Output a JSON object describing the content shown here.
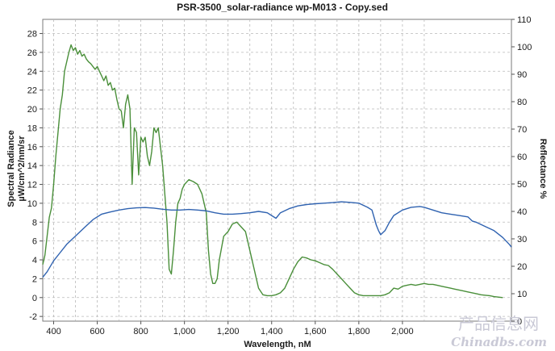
{
  "chart_data": {
    "type": "line",
    "title": "PSR-3500_solar-radiance wp-M013 - Copy.sed",
    "xlabel": "Wavelength, nM",
    "ylabel_left_lines": [
      "Spectral Radiance",
      "µW/cm^2/nm/sr"
    ],
    "ylabel_right": "Reflectance %",
    "xlim": [
      350,
      2500
    ],
    "ylim_left": [
      -2.5,
      29.5
    ],
    "ylim_right": [
      0,
      110
    ],
    "x_ticks": [
      400,
      600,
      800,
      1000,
      1200,
      1400,
      1600,
      1800,
      2000
    ],
    "x_tick_labels": [
      "400",
      "600",
      "800",
      "1,000",
      "1,200",
      "1,400",
      "1,600",
      "1,800",
      "2,000"
    ],
    "y_left_ticks": [
      -2,
      0,
      2,
      4,
      6,
      8,
      10,
      12,
      14,
      16,
      18,
      20,
      22,
      24,
      26,
      28
    ],
    "y_right_ticks": [
      0,
      10,
      20,
      30,
      40,
      50,
      60,
      70,
      80,
      90,
      100,
      110
    ],
    "grid": true,
    "series": [
      {
        "axis": "left",
        "color": "#4a8f3a",
        "points": [
          [
            350,
            3.5
          ],
          [
            360,
            4.5
          ],
          [
            370,
            6.5
          ],
          [
            380,
            8.5
          ],
          [
            390,
            9.5
          ],
          [
            400,
            12
          ],
          [
            410,
            15
          ],
          [
            420,
            17.5
          ],
          [
            430,
            20
          ],
          [
            440,
            21.5
          ],
          [
            450,
            24
          ],
          [
            460,
            25
          ],
          [
            470,
            26
          ],
          [
            480,
            26.8
          ],
          [
            490,
            26.2
          ],
          [
            500,
            26.5
          ],
          [
            510,
            25.8
          ],
          [
            520,
            26.2
          ],
          [
            530,
            25.6
          ],
          [
            540,
            25.8
          ],
          [
            550,
            25.3
          ],
          [
            560,
            25
          ],
          [
            570,
            24.8
          ],
          [
            580,
            24.5
          ],
          [
            590,
            24.2
          ],
          [
            600,
            24.5
          ],
          [
            610,
            24
          ],
          [
            620,
            23.5
          ],
          [
            630,
            23
          ],
          [
            640,
            23.5
          ],
          [
            650,
            22.5
          ],
          [
            660,
            22.8
          ],
          [
            670,
            22
          ],
          [
            680,
            22.2
          ],
          [
            690,
            21
          ],
          [
            700,
            20
          ],
          [
            710,
            19.8
          ],
          [
            720,
            18
          ],
          [
            730,
            20.5
          ],
          [
            740,
            21.5
          ],
          [
            750,
            20
          ],
          [
            760,
            12
          ],
          [
            770,
            18
          ],
          [
            780,
            17.5
          ],
          [
            790,
            13
          ],
          [
            800,
            17
          ],
          [
            810,
            16.5
          ],
          [
            820,
            17
          ],
          [
            830,
            15
          ],
          [
            840,
            14
          ],
          [
            850,
            15.5
          ],
          [
            860,
            18
          ],
          [
            870,
            17.5
          ],
          [
            880,
            18
          ],
          [
            890,
            16
          ],
          [
            900,
            14
          ],
          [
            910,
            11
          ],
          [
            920,
            8
          ],
          [
            930,
            3
          ],
          [
            940,
            2.5
          ],
          [
            950,
            5
          ],
          [
            960,
            8
          ],
          [
            970,
            10
          ],
          [
            980,
            10.5
          ],
          [
            990,
            11.5
          ],
          [
            1000,
            12
          ],
          [
            1020,
            12.5
          ],
          [
            1040,
            12.3
          ],
          [
            1060,
            12
          ],
          [
            1080,
            11
          ],
          [
            1100,
            9
          ],
          [
            1110,
            5
          ],
          [
            1120,
            2.5
          ],
          [
            1130,
            1.5
          ],
          [
            1140,
            1.5
          ],
          [
            1150,
            2
          ],
          [
            1160,
            4
          ],
          [
            1180,
            6.5
          ],
          [
            1200,
            7
          ],
          [
            1220,
            7.8
          ],
          [
            1240,
            8
          ],
          [
            1260,
            7.5
          ],
          [
            1280,
            7
          ],
          [
            1300,
            5
          ],
          [
            1320,
            3
          ],
          [
            1340,
            1
          ],
          [
            1360,
            0.3
          ],
          [
            1380,
            0.2
          ],
          [
            1400,
            0.2
          ],
          [
            1420,
            0.3
          ],
          [
            1440,
            0.5
          ],
          [
            1460,
            1
          ],
          [
            1480,
            2
          ],
          [
            1500,
            3
          ],
          [
            1520,
            3.8
          ],
          [
            1540,
            4.3
          ],
          [
            1560,
            4.2
          ],
          [
            1580,
            4
          ],
          [
            1600,
            3.9
          ],
          [
            1620,
            3.7
          ],
          [
            1640,
            3.5
          ],
          [
            1660,
            3.4
          ],
          [
            1680,
            3
          ],
          [
            1700,
            2.5
          ],
          [
            1720,
            2
          ],
          [
            1740,
            1.5
          ],
          [
            1760,
            1
          ],
          [
            1780,
            0.5
          ],
          [
            1800,
            0.3
          ],
          [
            1820,
            0.2
          ],
          [
            1840,
            0.2
          ],
          [
            1860,
            0.2
          ],
          [
            1880,
            0.2
          ],
          [
            1900,
            0.2
          ],
          [
            1920,
            0.3
          ],
          [
            1940,
            0.5
          ],
          [
            1960,
            1
          ],
          [
            1980,
            0.9
          ],
          [
            2000,
            1.2
          ],
          [
            2020,
            1.3
          ],
          [
            2040,
            1.4
          ],
          [
            2060,
            1.3
          ],
          [
            2080,
            1.4
          ],
          [
            2100,
            1.5
          ],
          [
            2120,
            1.4
          ],
          [
            2140,
            1.4
          ],
          [
            2160,
            1.3
          ],
          [
            2180,
            1.2
          ],
          [
            2200,
            1.1
          ],
          [
            2220,
            1
          ],
          [
            2240,
            0.9
          ],
          [
            2260,
            0.8
          ],
          [
            2280,
            0.7
          ],
          [
            2300,
            0.6
          ],
          [
            2320,
            0.5
          ],
          [
            2340,
            0.4
          ],
          [
            2360,
            0.3
          ],
          [
            2380,
            0.25
          ],
          [
            2400,
            0.2
          ],
          [
            2420,
            0.1
          ],
          [
            2440,
            0.05
          ],
          [
            2460,
            0
          ]
        ]
      },
      {
        "axis": "right",
        "color": "#2f62b0",
        "points": [
          [
            350,
            16
          ],
          [
            370,
            18
          ],
          [
            400,
            22
          ],
          [
            430,
            25
          ],
          [
            460,
            28
          ],
          [
            500,
            31
          ],
          [
            540,
            34
          ],
          [
            580,
            37
          ],
          [
            620,
            39
          ],
          [
            660,
            39.8
          ],
          [
            700,
            40.5
          ],
          [
            740,
            41
          ],
          [
            780,
            41.3
          ],
          [
            820,
            41.4
          ],
          [
            860,
            41.2
          ],
          [
            900,
            40.8
          ],
          [
            940,
            40.5
          ],
          [
            980,
            40.5
          ],
          [
            1020,
            40.7
          ],
          [
            1060,
            40.5
          ],
          [
            1100,
            40.2
          ],
          [
            1140,
            39.5
          ],
          [
            1180,
            39
          ],
          [
            1220,
            39
          ],
          [
            1260,
            39.2
          ],
          [
            1300,
            39.5
          ],
          [
            1340,
            40
          ],
          [
            1380,
            39.5
          ],
          [
            1400,
            38.5
          ],
          [
            1420,
            37.5
          ],
          [
            1440,
            39.5
          ],
          [
            1480,
            41
          ],
          [
            1520,
            42
          ],
          [
            1560,
            42.5
          ],
          [
            1600,
            42.8
          ],
          [
            1640,
            43
          ],
          [
            1680,
            43.2
          ],
          [
            1720,
            43.5
          ],
          [
            1760,
            43.3
          ],
          [
            1800,
            43
          ],
          [
            1840,
            41.5
          ],
          [
            1860,
            40.5
          ],
          [
            1880,
            35
          ],
          [
            1890,
            33
          ],
          [
            1900,
            31.5
          ],
          [
            1920,
            33
          ],
          [
            1940,
            36
          ],
          [
            1960,
            38.5
          ],
          [
            2000,
            40.5
          ],
          [
            2040,
            41.5
          ],
          [
            2080,
            41.8
          ],
          [
            2100,
            41.5
          ],
          [
            2140,
            40.5
          ],
          [
            2180,
            39.5
          ],
          [
            2220,
            39
          ],
          [
            2260,
            38.5
          ],
          [
            2300,
            38
          ],
          [
            2320,
            36.5
          ],
          [
            2340,
            36
          ],
          [
            2380,
            34.5
          ],
          [
            2420,
            33
          ],
          [
            2460,
            30.5
          ],
          [
            2490,
            28
          ],
          [
            2500,
            27
          ]
        ]
      }
    ]
  },
  "watermark": {
    "line1": "产品信息网",
    "line2": "Chinadbs.com"
  }
}
